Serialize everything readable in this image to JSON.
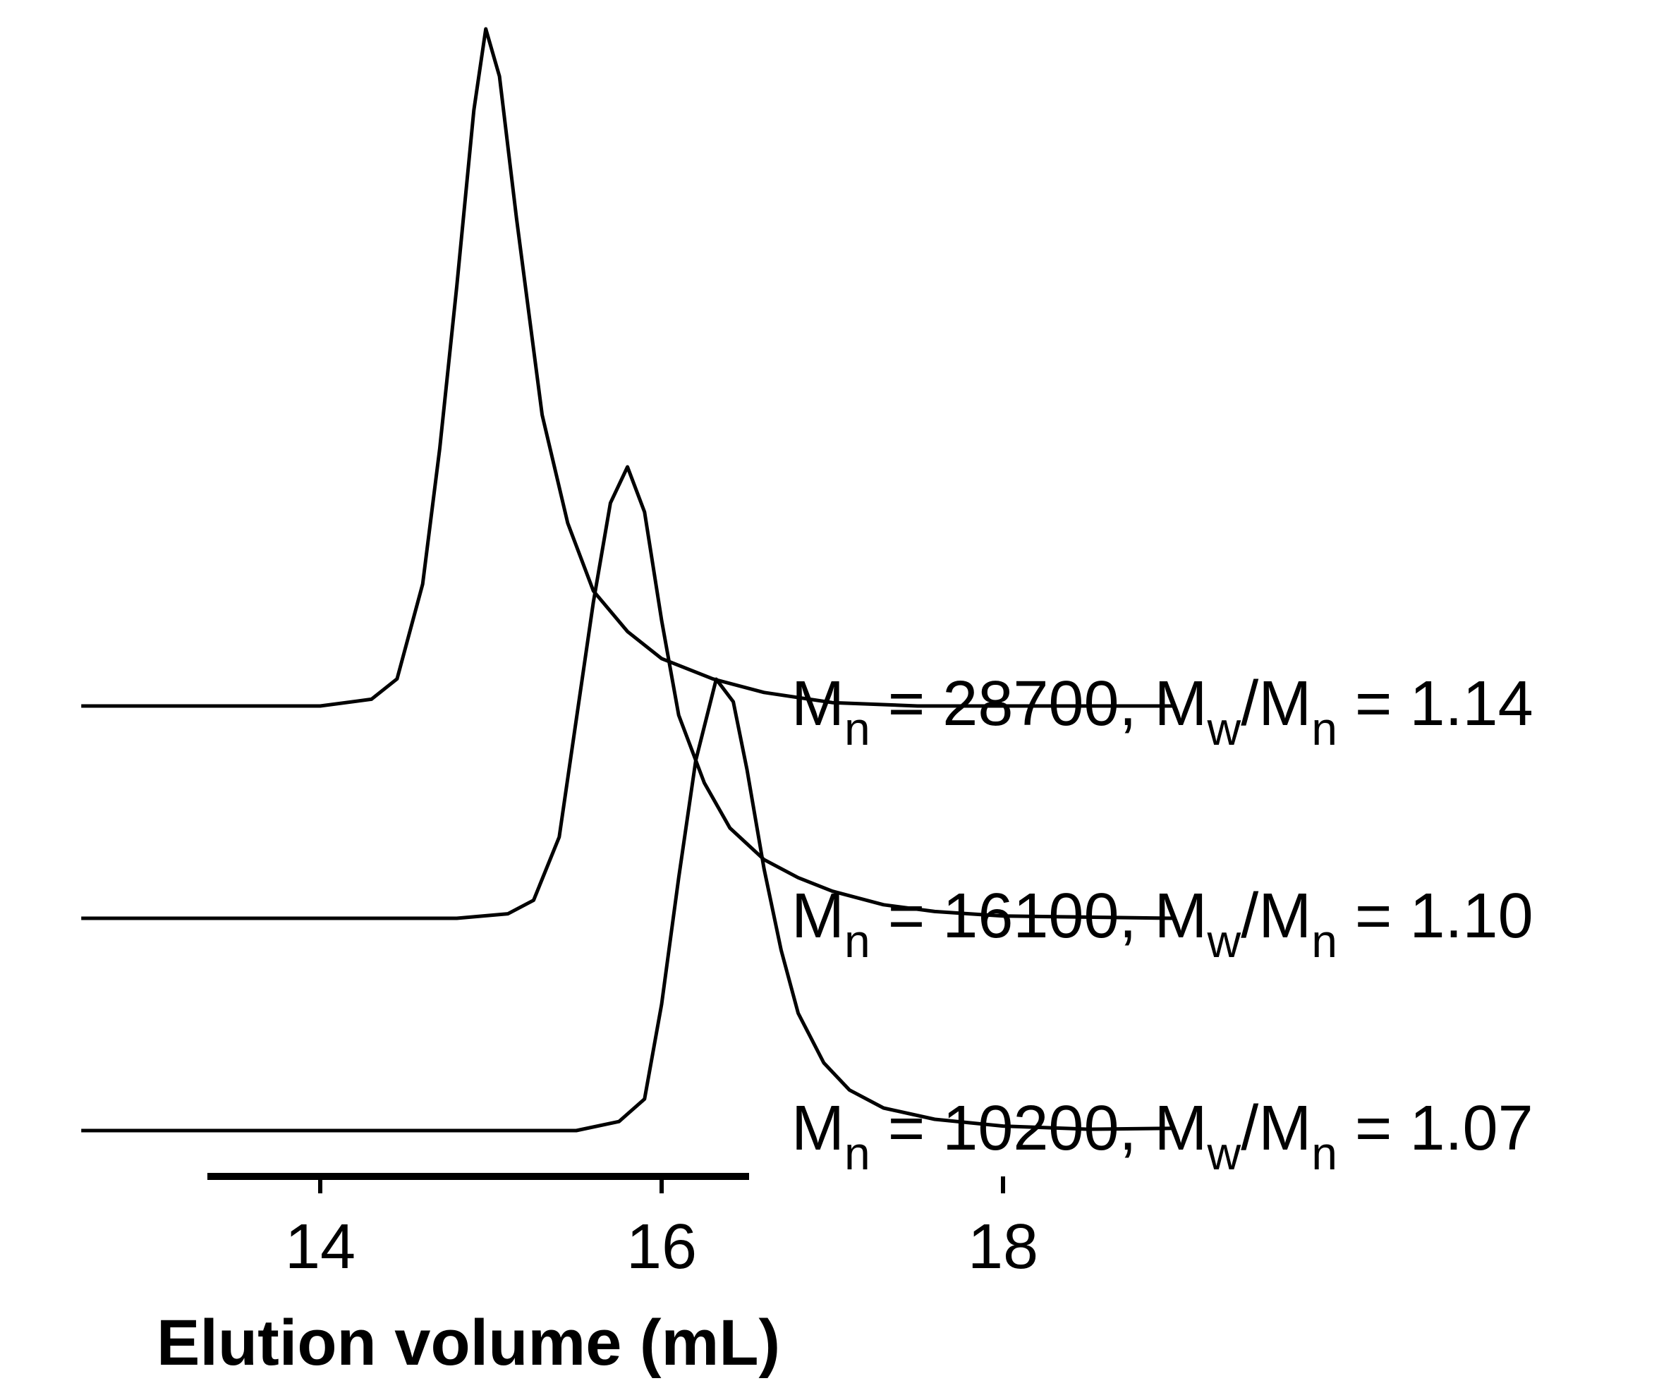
{
  "chart_data": {
    "type": "line",
    "title": "",
    "xlabel": "Elution volume (mL)",
    "ylabel": "",
    "xlim": [
      12.6,
      19.0
    ],
    "xticks": [
      14,
      16,
      18
    ],
    "x_tick_labels": [
      "14",
      "16",
      "18"
    ],
    "y_axis_shown": false,
    "grid": false,
    "legend": "none (labels at right end of each trace)",
    "series": [
      {
        "label_parts": [
          "M",
          "n",
          " = 28700, M",
          "w",
          "/M",
          "n",
          " = 1.14"
        ],
        "baseline_offset": 2,
        "points": [
          [
            12.6,
            0.0
          ],
          [
            14.0,
            0.0
          ],
          [
            14.3,
            0.01
          ],
          [
            14.45,
            0.04
          ],
          [
            14.6,
            0.18
          ],
          [
            14.7,
            0.38
          ],
          [
            14.8,
            0.62
          ],
          [
            14.9,
            0.88
          ],
          [
            14.97,
            1.0
          ],
          [
            15.05,
            0.93
          ],
          [
            15.15,
            0.72
          ],
          [
            15.3,
            0.43
          ],
          [
            15.45,
            0.27
          ],
          [
            15.6,
            0.17
          ],
          [
            15.8,
            0.11
          ],
          [
            16.0,
            0.07
          ],
          [
            16.3,
            0.04
          ],
          [
            16.6,
            0.02
          ],
          [
            17.0,
            0.005
          ],
          [
            17.5,
            0.0
          ],
          [
            19.0,
            0.0
          ]
        ]
      },
      {
        "label_parts": [
          "M",
          "n",
          " = 16100, M",
          "w",
          "/M",
          "n",
          " = 1.10"
        ],
        "baseline_offset": 1,
        "points": [
          [
            12.6,
            0.0
          ],
          [
            14.8,
            0.0
          ],
          [
            15.1,
            0.01
          ],
          [
            15.25,
            0.04
          ],
          [
            15.4,
            0.18
          ],
          [
            15.5,
            0.44
          ],
          [
            15.6,
            0.7
          ],
          [
            15.7,
            0.92
          ],
          [
            15.8,
            1.0
          ],
          [
            15.9,
            0.9
          ],
          [
            16.0,
            0.66
          ],
          [
            16.1,
            0.45
          ],
          [
            16.25,
            0.3
          ],
          [
            16.4,
            0.2
          ],
          [
            16.6,
            0.13
          ],
          [
            16.8,
            0.09
          ],
          [
            17.0,
            0.06
          ],
          [
            17.3,
            0.03
          ],
          [
            17.6,
            0.015
          ],
          [
            18.0,
            0.005
          ],
          [
            19.0,
            0.0
          ]
        ]
      },
      {
        "label_parts": [
          "M",
          "n",
          " = 10200, M",
          "w",
          "/M",
          "n",
          " = 1.07"
        ],
        "baseline_offset": 0,
        "points": [
          [
            12.6,
            0.0
          ],
          [
            15.5,
            0.0
          ],
          [
            15.75,
            0.02
          ],
          [
            15.9,
            0.07
          ],
          [
            16.0,
            0.28
          ],
          [
            16.1,
            0.56
          ],
          [
            16.2,
            0.82
          ],
          [
            16.32,
            1.0
          ],
          [
            16.42,
            0.95
          ],
          [
            16.5,
            0.8
          ],
          [
            16.6,
            0.58
          ],
          [
            16.7,
            0.4
          ],
          [
            16.8,
            0.26
          ],
          [
            16.95,
            0.15
          ],
          [
            17.1,
            0.09
          ],
          [
            17.3,
            0.05
          ],
          [
            17.6,
            0.025
          ],
          [
            18.0,
            0.01
          ],
          [
            18.5,
            0.003
          ],
          [
            19.0,
            0.005
          ]
        ]
      }
    ]
  }
}
